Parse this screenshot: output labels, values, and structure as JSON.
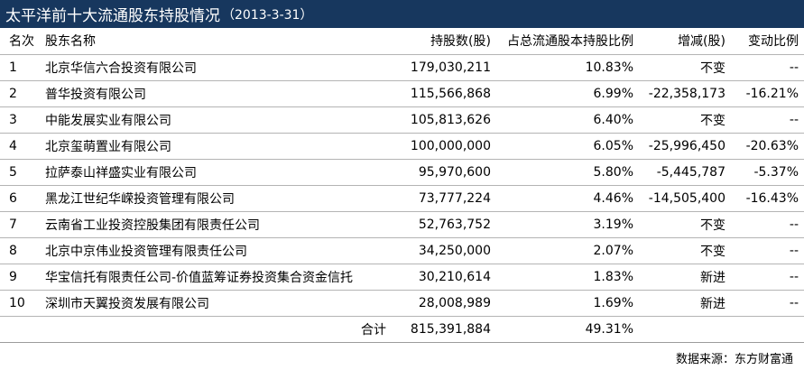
{
  "title": {
    "main": "太平洋前十大流通股东持股情况",
    "date": "（2013-3-31）"
  },
  "columns": {
    "rank": "名次",
    "name": "股东名称",
    "shares": "持股数(股)",
    "pct": "占总流通股本持股比例",
    "change": "增减(股)",
    "change_ratio": "变动比例"
  },
  "rows": [
    {
      "rank": "1",
      "name": "北京华信六合投资有限公司",
      "shares": "179,030,211",
      "pct": "10.83%",
      "change": "不变",
      "change_ratio": "--"
    },
    {
      "rank": "2",
      "name": "普华投资有限公司",
      "shares": "115,566,868",
      "pct": "6.99%",
      "change": "-22,358,173",
      "change_ratio": "-16.21%"
    },
    {
      "rank": "3",
      "name": "中能发展实业有限公司",
      "shares": "105,813,626",
      "pct": "6.40%",
      "change": "不变",
      "change_ratio": "--"
    },
    {
      "rank": "4",
      "name": "北京玺萌置业有限公司",
      "shares": "100,000,000",
      "pct": "6.05%",
      "change": "-25,996,450",
      "change_ratio": "-20.63%"
    },
    {
      "rank": "5",
      "name": "拉萨泰山祥盛实业有限公司",
      "shares": "95,970,600",
      "pct": "5.80%",
      "change": "-5,445,787",
      "change_ratio": "-5.37%"
    },
    {
      "rank": "6",
      "name": "黑龙江世纪华嵘投资管理有限公司",
      "shares": "73,777,224",
      "pct": "4.46%",
      "change": "-14,505,400",
      "change_ratio": "-16.43%"
    },
    {
      "rank": "7",
      "name": "云南省工业投资控股集团有限责任公司",
      "shares": "52,763,752",
      "pct": "3.19%",
      "change": "不变",
      "change_ratio": "--"
    },
    {
      "rank": "8",
      "name": "北京中京伟业投资管理有限责任公司",
      "shares": "34,250,000",
      "pct": "2.07%",
      "change": "不变",
      "change_ratio": "--"
    },
    {
      "rank": "9",
      "name": "华宝信托有限责任公司-价值蓝筹证券投资集合资金信托",
      "shares": "30,210,614",
      "pct": "1.83%",
      "change": "新进",
      "change_ratio": "--"
    },
    {
      "rank": "10",
      "name": "深圳市天翼投资发展有限公司",
      "shares": "28,008,989",
      "pct": "1.69%",
      "change": "新进",
      "change_ratio": "--"
    }
  ],
  "total": {
    "label": "合计",
    "shares": "815,391,884",
    "pct": "49.31%"
  },
  "source": "数据来源：东方财富通",
  "colors": {
    "title_bg": "#17375e",
    "title_text": "#ffffff"
  }
}
